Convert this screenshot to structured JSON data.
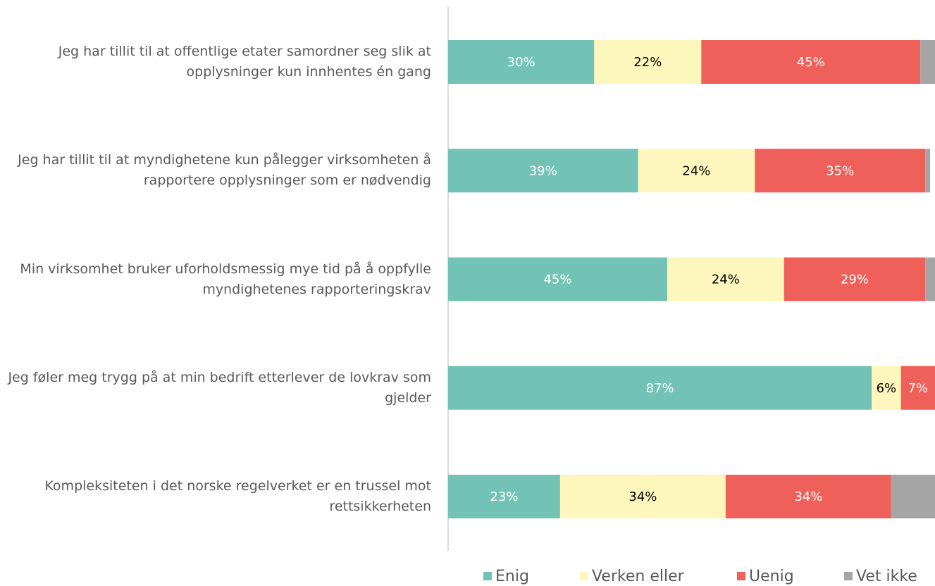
{
  "chart_data": {
    "type": "stacked-bar-horizontal",
    "categories": [
      "Jeg har tillit til at offentlige etater samordner seg slik at opplysninger kun innhentes én gang",
      "Jeg har tillit til at myndighetene kun pålegger virksomheten å rapportere opplysninger som er nødvendig",
      "Min virksomhet bruker uforholdsmessig mye tid på å oppfylle myndighetenes rapporteringskrav",
      "Jeg føler meg trygg på at min bedrift etterlever de lovkrav som gjelder",
      "Kompleksiteten i det norske regelverket er en trussel mot rettsikkerheten"
    ],
    "series": [
      {
        "name": "Enig",
        "color": "#72c3b5",
        "label_color": "#ffffff",
        "values": [
          30,
          39,
          45,
          87,
          23
        ],
        "value_labels": [
          "30%",
          "39%",
          "45%",
          "87%",
          "23%"
        ]
      },
      {
        "name": "Verken eller",
        "color": "#fdf7bd",
        "label_color": "#000000",
        "values": [
          22,
          24,
          24,
          6,
          34
        ],
        "value_labels": [
          "22%",
          "24%",
          "24%",
          "6%",
          "34%"
        ]
      },
      {
        "name": "Uenig",
        "color": "#f0605a",
        "label_color": "#ffffff",
        "values": [
          45,
          35,
          29,
          7,
          34
        ],
        "value_labels": [
          "45%",
          "35%",
          "29%",
          "7%",
          "34%"
        ]
      },
      {
        "name": "Vet ikke",
        "color": "#a5a5a5",
        "values": [
          3,
          1,
          2,
          0,
          9
        ]
      }
    ],
    "xlim": [
      0,
      100
    ]
  }
}
